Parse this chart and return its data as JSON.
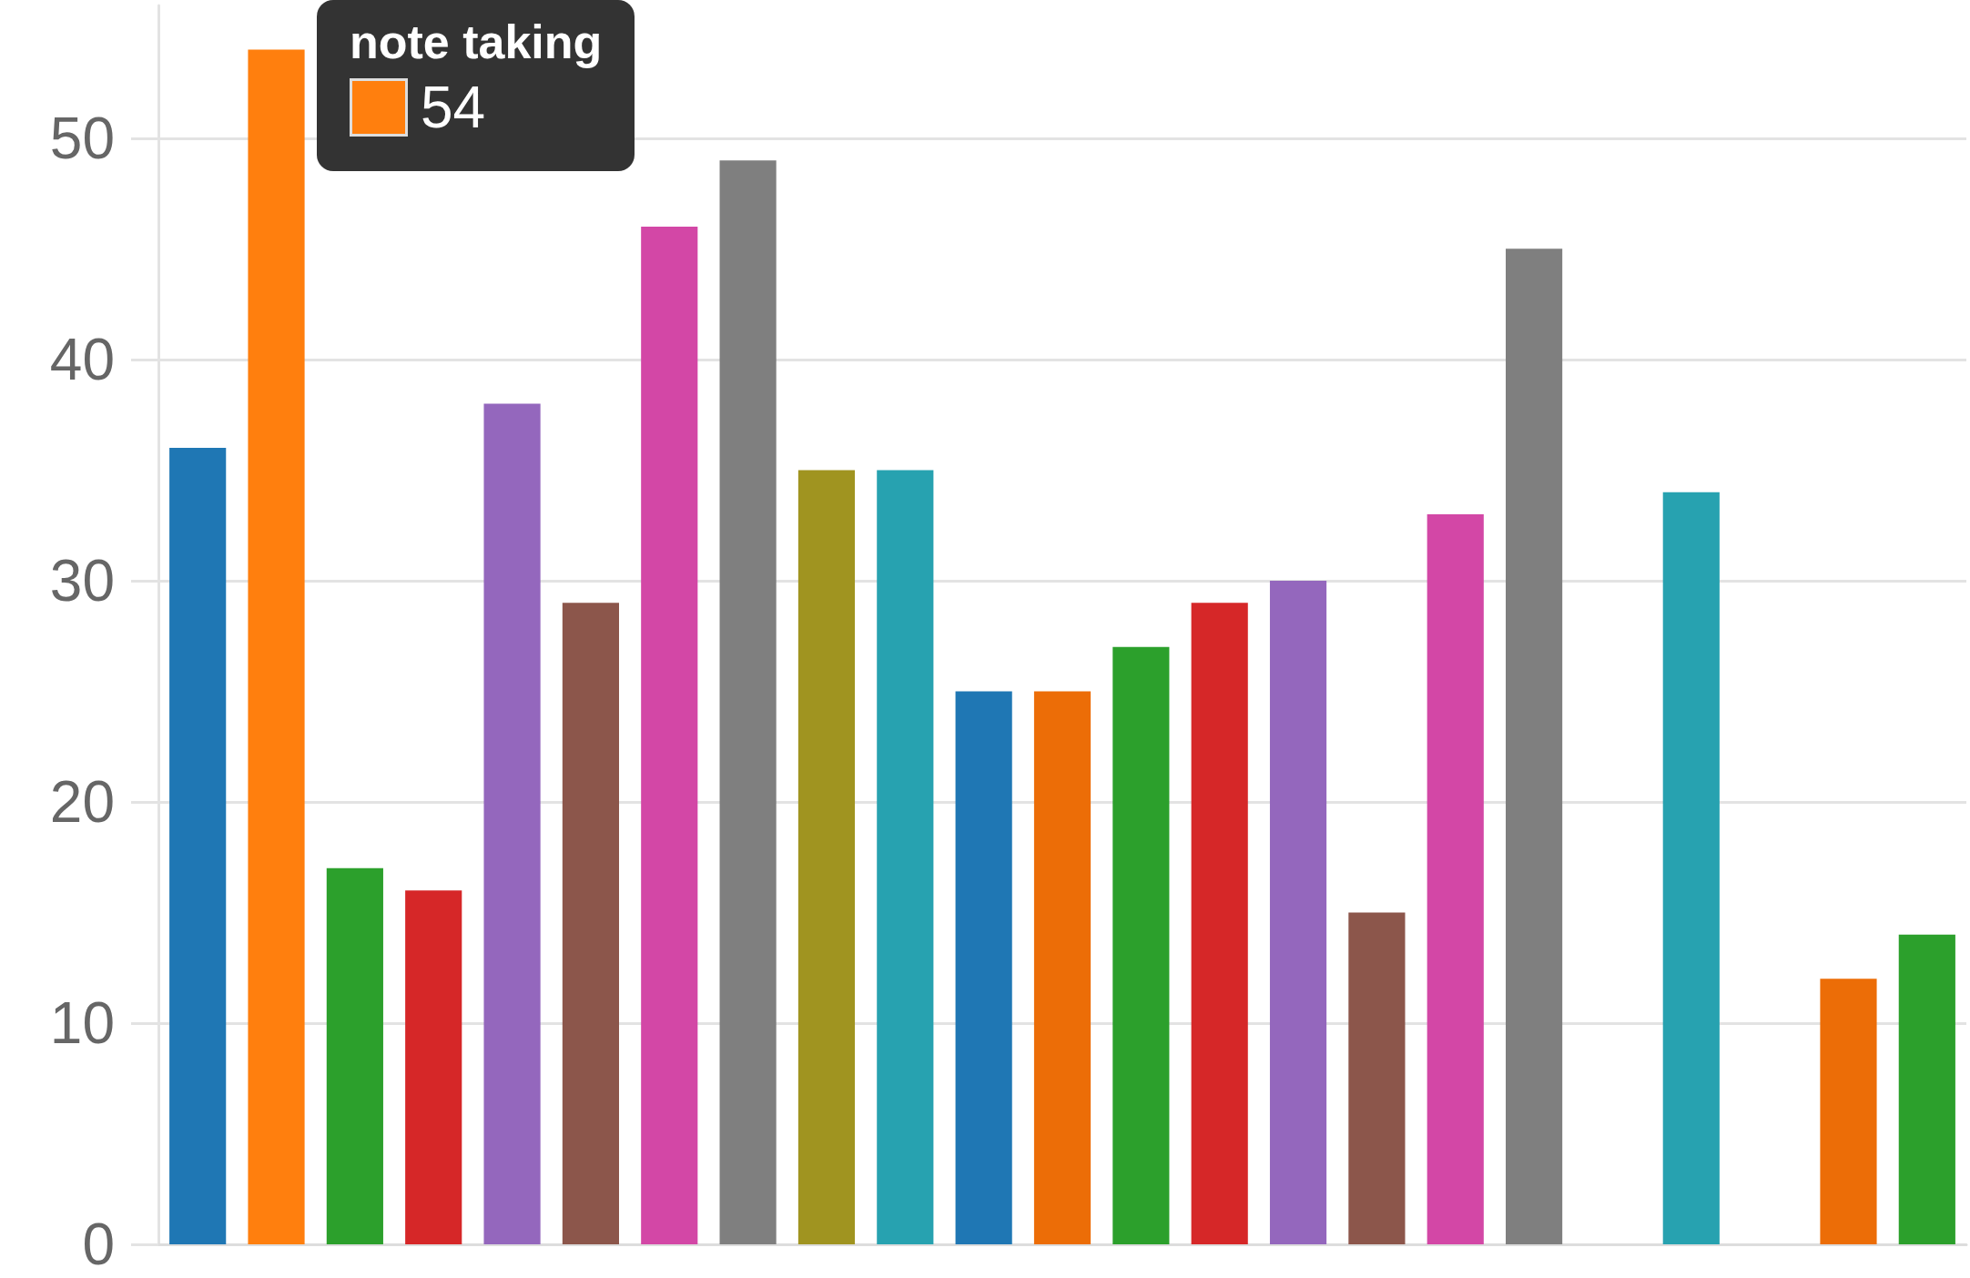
{
  "chart_data": {
    "type": "bar",
    "categories": [
      null,
      null,
      null,
      null,
      null,
      null,
      null,
      null,
      null,
      null,
      null,
      null,
      null,
      null,
      null,
      null,
      null,
      null,
      null,
      null,
      null,
      null,
      null
    ],
    "values": [
      36,
      54,
      17,
      16,
      38,
      29,
      46,
      49,
      35,
      35,
      25,
      25,
      27,
      29,
      30,
      15,
      33,
      45,
      null,
      34,
      null,
      12,
      14
    ],
    "colors": [
      "#1f77b4",
      "#ff7f0e",
      "#2ca02c",
      "#d62728",
      "#9467bd",
      "#8c564b",
      "#d347a6",
      "#7f7f7f",
      "#a09420",
      "#27a2b0",
      "#1f77b4",
      "#ec6d07",
      "#2ca02c",
      "#d62728",
      "#9467bd",
      "#8c564b",
      "#d347a6",
      "#7f7f7f",
      "#a09420",
      "#27a2b0",
      "#1f77b4",
      "#ec6d07",
      "#2ca02c"
    ],
    "ylim": [
      0,
      56
    ],
    "yticks": [
      0,
      10,
      20,
      30,
      40,
      50
    ],
    "grid": "y",
    "annotations": [
      "note taking",
      "54"
    ]
  }
}
